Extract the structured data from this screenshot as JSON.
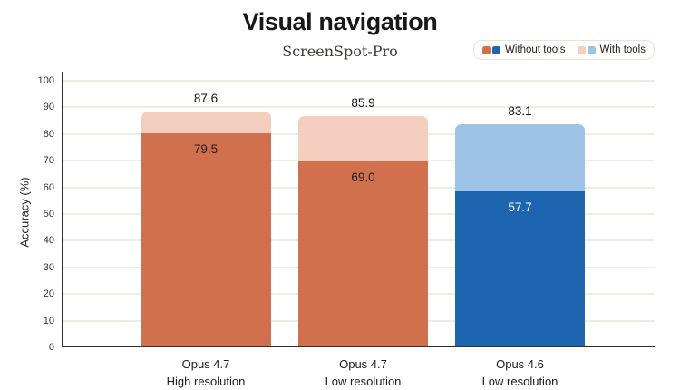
{
  "header": {
    "title": "Visual navigation",
    "subtitle": "ScreenSpot-Pro"
  },
  "legend": {
    "items": [
      {
        "label": "Without tools",
        "swatches": [
          "#d0704c",
          "#1d65af"
        ]
      },
      {
        "label": "With tools",
        "swatches": [
          "#f4cfc0",
          "#9dc3e6"
        ]
      }
    ]
  },
  "chart_data": {
    "type": "bar",
    "title": "Visual navigation",
    "subtitle": "ScreenSpot-Pro",
    "xlabel": "",
    "ylabel": "Accuracy (%)",
    "ylim": [
      0,
      100
    ],
    "ytick_step": 10,
    "grid": true,
    "legend_position": "top-right",
    "bar_style": "overlaid",
    "categories": [
      "Opus 4.7\nHigh resolution",
      "Opus 4.7\nLow resolution",
      "Opus 4.6\nLow resolution"
    ],
    "series": [
      {
        "name": "Without tools",
        "values": [
          79.5,
          69.0,
          57.7
        ],
        "colors": [
          "#d0704c",
          "#d0704c",
          "#1d65af"
        ],
        "value_label_colors": [
          "#1f1f1f",
          "#1f1f1f",
          "#ffffff"
        ]
      },
      {
        "name": "With tools",
        "values": [
          87.6,
          85.9,
          83.1
        ],
        "colors": [
          "#f4cfc0",
          "#f4cfc0",
          "#9dc3e6"
        ],
        "value_label_colors": [
          "#141414",
          "#141414",
          "#141414"
        ]
      }
    ]
  }
}
